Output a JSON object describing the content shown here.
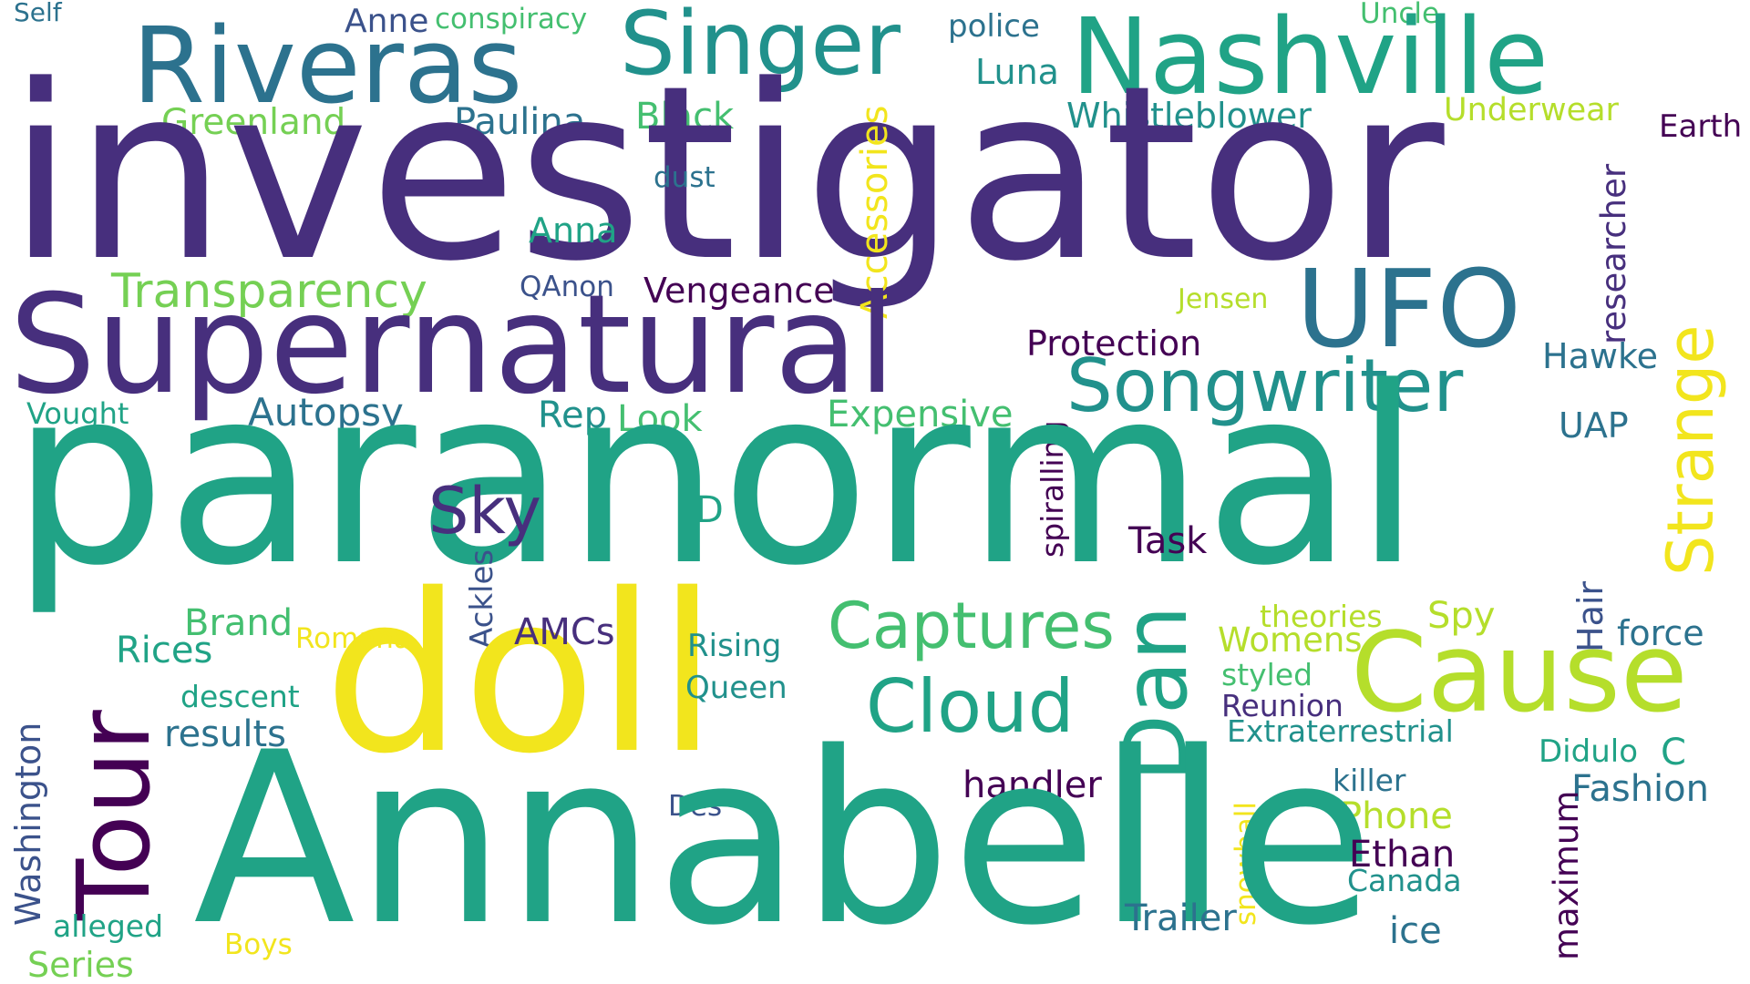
{
  "palette": {
    "deep_purple": "#440154",
    "indigo": "#472f7d",
    "blue": "#3b528b",
    "steel_blue": "#2c728e",
    "teal_blue": "#21918c",
    "teal": "#20a386",
    "green": "#44bf70",
    "light_green": "#75d054",
    "lime": "#b5de2b",
    "yellow": "#f2e51d",
    "background": "#ffffff"
  },
  "words": {
    "self": "Self",
    "anne": "Anne",
    "conspiracy": "conspiracy",
    "police": "police",
    "uncle": "Uncle",
    "riveras": "Riveras",
    "singer": "Singer",
    "nashville": "Nashville",
    "luna": "Luna",
    "greenland": "Greenland",
    "paulina": "Paulina",
    "black": "Black",
    "whistleblower": "Whistleblower",
    "underwear": "Underwear",
    "earth": "Earth",
    "investigator": "investigator",
    "dust": "dust",
    "accessories": "Accessories",
    "researcher": "researcher",
    "anna": "Anna",
    "transparency": "Transparency",
    "qanon": "QAnon",
    "vengeance": "Vengeance",
    "jensen": "Jensen",
    "supernatural": "Supernatural",
    "ufo": "UFO",
    "strange": "Strange",
    "protection": "Protection",
    "hawke": "Hawke",
    "songwriter": "Songwriter",
    "vought": "Vought",
    "autopsy": "Autopsy",
    "rep": "Rep",
    "look": "Look",
    "expensive": "Expensive",
    "spiralling": "spiralling",
    "uap": "UAP",
    "paranormal": "paranormal",
    "sky": "Sky",
    "d": "D",
    "task": "Task",
    "ackles": "Ackles",
    "hair": "Hair",
    "brand": "Brand",
    "doll": "doll",
    "captures": "Captures",
    "theories": "theories",
    "spy": "Spy",
    "romana": "Romana",
    "amcs": "AMCs",
    "rising": "Rising",
    "dan": "Dan",
    "womens": "Womens",
    "force": "force",
    "rices": "Rices",
    "tour": "Tour",
    "cause": "Cause",
    "styled": "styled",
    "descent": "descent",
    "queen": "Queen",
    "cloud": "Cloud",
    "reunion": "Reunion",
    "washington": "Washington",
    "results": "results",
    "extraterrestrial": "Extraterrestrial",
    "didulo": "Didulo",
    "c": "C",
    "handler": "handler",
    "killer": "killer",
    "fashion": "Fashion",
    "snowball": "snowball",
    "des": "Des",
    "phone": "Phone",
    "maximum": "maximum",
    "annabelle": "Annabelle",
    "ethan": "Ethan",
    "canada": "Canada",
    "alleged": "alleged",
    "trailer": "Trailer",
    "ice": "ice",
    "boys": "Boys",
    "series": "Series"
  }
}
